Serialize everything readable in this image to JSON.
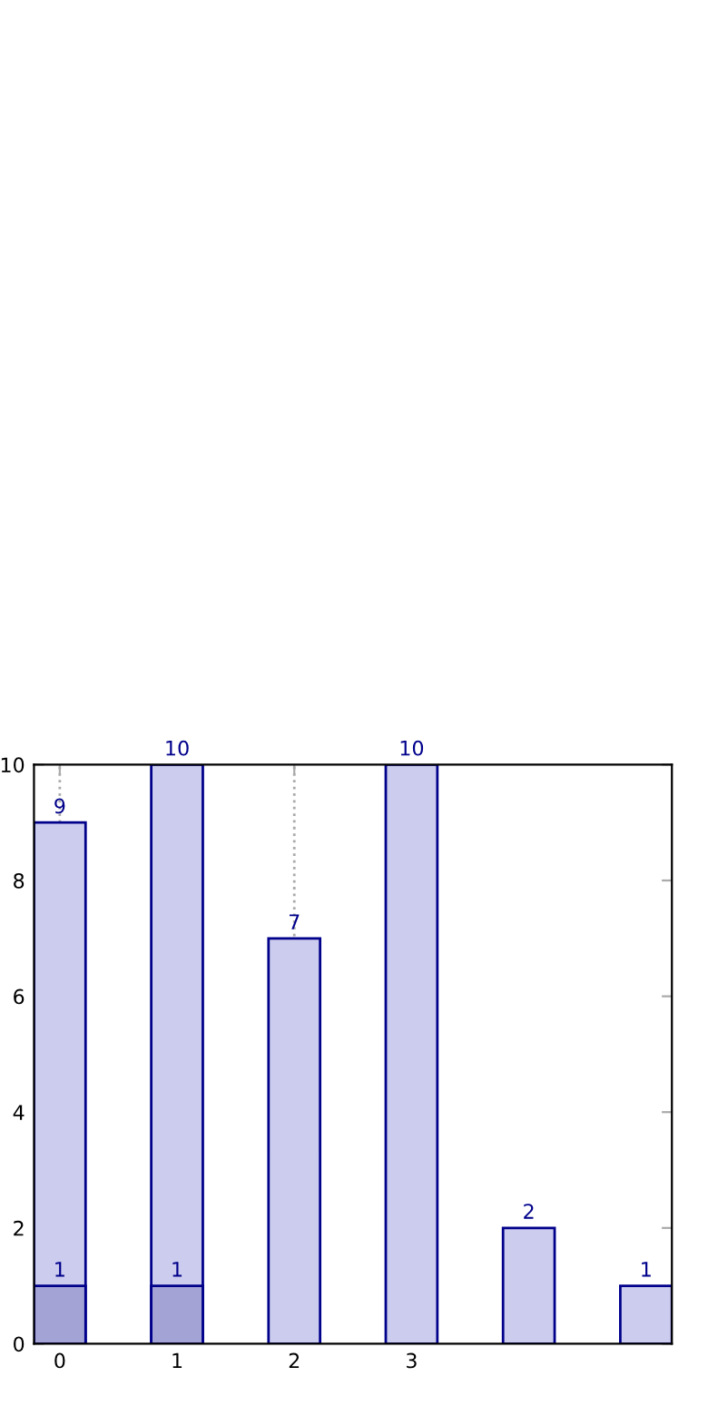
{
  "chart_data": {
    "type": "bar",
    "x": [
      0,
      1,
      2,
      3,
      4,
      5
    ],
    "series": [
      {
        "color": "#ccccee",
        "values": [
          9,
          10,
          7,
          10,
          2,
          1
        ]
      },
      {
        "color": "#a3a3d6",
        "values": [
          1,
          1,
          null,
          null,
          null,
          null
        ]
      }
    ],
    "xlim": [
      -0.22,
      5.22
    ],
    "xticks": [
      0,
      1,
      2,
      3
    ],
    "ylim": [
      0,
      10
    ],
    "yticks": [
      0,
      2,
      4,
      6,
      8,
      10
    ],
    "grid": "x",
    "data_labels": true
  }
}
